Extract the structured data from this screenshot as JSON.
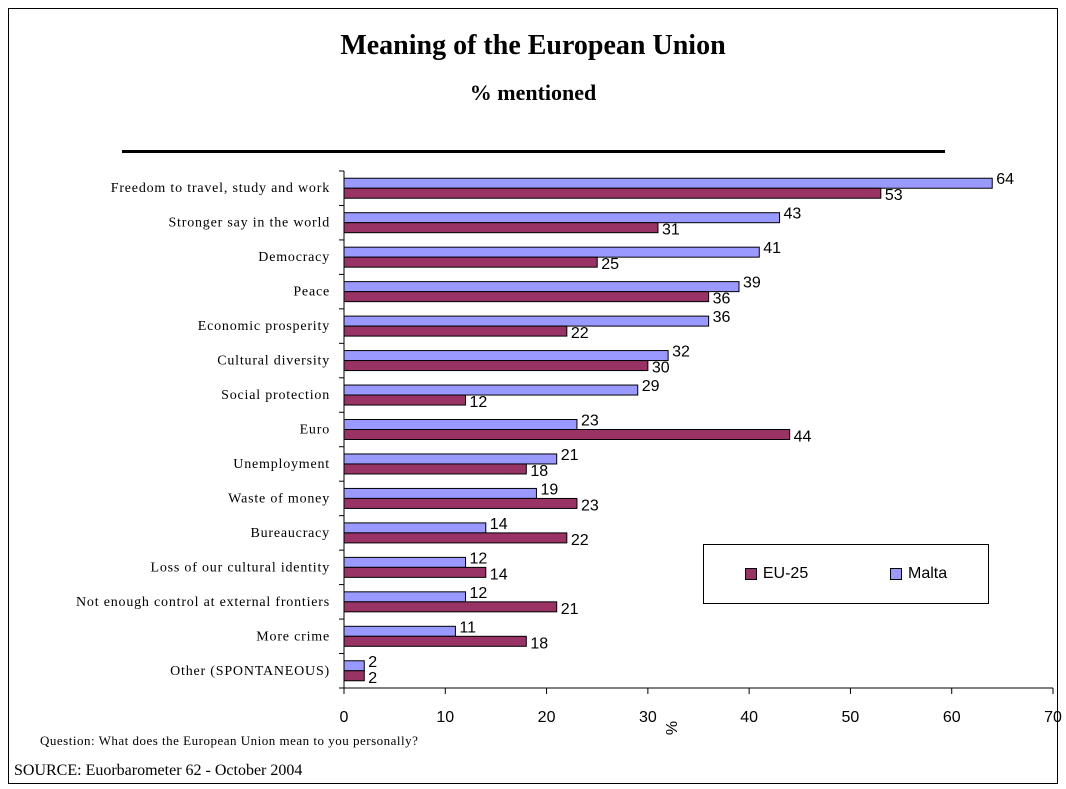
{
  "chart_data": {
    "type": "bar",
    "orientation": "horizontal",
    "title": "Meaning of the European Union",
    "subtitle": "% mentioned",
    "xlabel": "%",
    "xlim": [
      0,
      70
    ],
    "xticks": [
      "0",
      "10",
      "20",
      "30",
      "40",
      "50",
      "60",
      "70"
    ],
    "categories": [
      "Freedom to travel, study and work",
      "Stronger say in the world",
      "Democracy",
      "Peace",
      "Economic prosperity",
      "Cultural diversity",
      "Social protection",
      "Euro",
      "Unemployment",
      "Waste of money",
      "Bureaucracy",
      "Loss of our cultural identity",
      "Not enough control at external frontiers",
      "More crime",
      "Other (SPONTANEOUS)"
    ],
    "series": [
      {
        "name": "Malta",
        "color": "#9999FF",
        "values": [
          64,
          43,
          41,
          39,
          36,
          32,
          29,
          23,
          21,
          19,
          14,
          12,
          12,
          11,
          2
        ]
      },
      {
        "name": "EU-25",
        "color": "#993366",
        "values": [
          53,
          31,
          25,
          36,
          22,
          30,
          12,
          44,
          18,
          23,
          22,
          14,
          21,
          18,
          2
        ]
      }
    ],
    "legend": {
      "placement": "lower-right",
      "order": [
        "EU-25",
        "Malta"
      ]
    },
    "grid": false
  },
  "footer": {
    "question": "Question: What does the European Union mean to you personally?",
    "source": "SOURCE: Euorbarometer 62 - October 2004"
  }
}
